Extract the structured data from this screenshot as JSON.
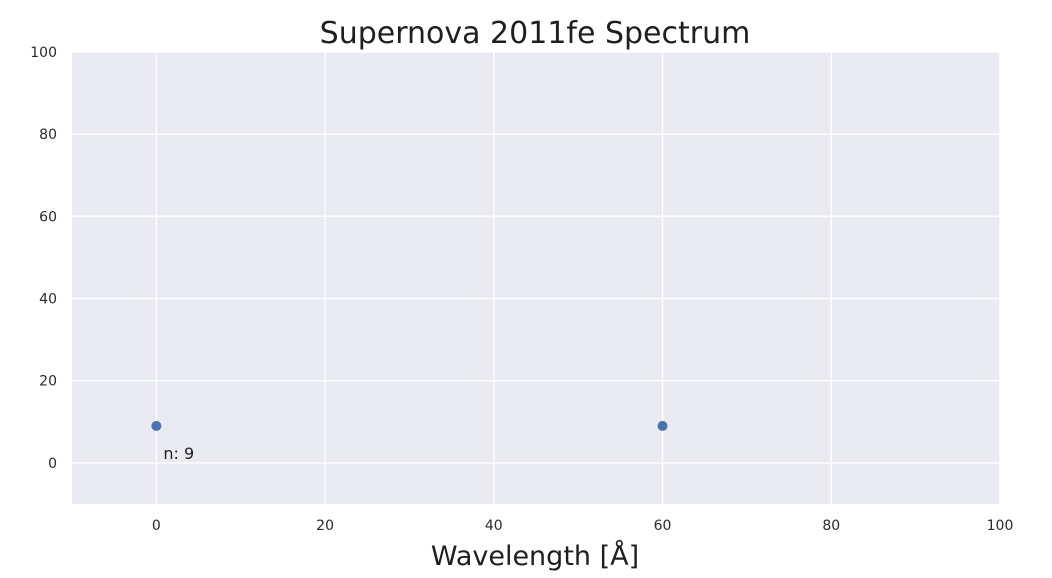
{
  "chart_data": {
    "type": "scatter",
    "title": "Supernova 2011fe Spectrum",
    "xlabel": "Wavelength [Å]",
    "ylabel": "",
    "xlim": [
      -10,
      100
    ],
    "ylim": [
      -10,
      100
    ],
    "xticks": [
      0,
      20,
      40,
      60,
      80,
      100
    ],
    "yticks": [
      0,
      20,
      40,
      60,
      80,
      100
    ],
    "grid": true,
    "series": [
      {
        "points": [
          {
            "x": 0,
            "y": 9
          },
          {
            "x": 60,
            "y": 9
          }
        ]
      }
    ],
    "annotations": [
      {
        "text": "n: 9",
        "x": 0,
        "y": 9
      }
    ]
  },
  "colors": {
    "plot_background": "#eaeaf2",
    "grid": "#ffffff",
    "marker": "#4c72b0"
  }
}
